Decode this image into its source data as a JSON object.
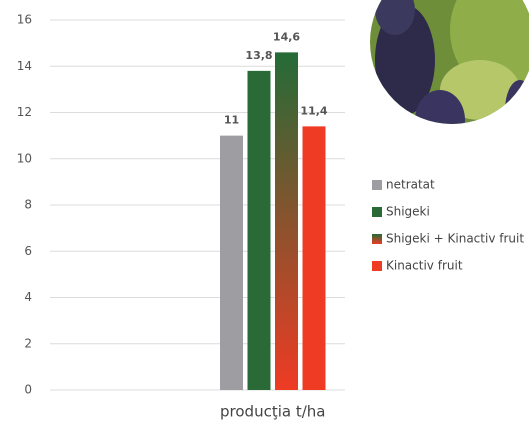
{
  "chart_data": {
    "type": "bar",
    "categories": [
      "producţia t/ha"
    ],
    "series": [
      {
        "name": "netratat",
        "color": "#9d9da2",
        "values": [
          11
        ]
      },
      {
        "name": "Shigeki",
        "color": "#2a6a36",
        "values": [
          13.8
        ],
        "value_labels": [
          "13,8"
        ]
      },
      {
        "name": "Shigeki + Kinactiv fruit",
        "color": "#2a6a36",
        "gradient": [
          "#236b37",
          "#ef3b24"
        ],
        "values": [
          14.6
        ],
        "value_labels": [
          "14,6"
        ]
      },
      {
        "name": "Kinactiv fruit",
        "color": "#ef3b24",
        "values": [
          11.4
        ],
        "value_labels": [
          "11,4"
        ]
      }
    ],
    "ylim": [
      0,
      16
    ],
    "yticks": [
      0,
      2,
      4,
      6,
      8,
      10,
      12,
      14,
      16
    ],
    "grid": true,
    "legend": "right"
  }
}
